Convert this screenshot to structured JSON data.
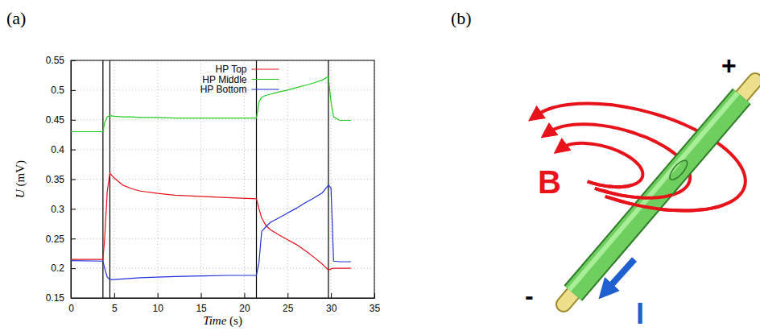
{
  "chart_data": {
    "type": "line",
    "xlabel": "Time (s)",
    "ylabel": "U (mV)",
    "x": [
      0,
      3.7,
      3.9,
      4.2,
      4.5,
      5,
      6,
      7,
      8,
      10,
      12,
      15,
      18,
      21.4,
      21.7,
      22,
      22.5,
      23,
      24,
      25,
      26,
      27,
      28,
      29,
      29.7,
      30,
      30.3,
      31,
      32.3
    ],
    "series": [
      {
        "name": "HP Top",
        "color": "#e8121a",
        "values": [
          0.215,
          0.215,
          0.25,
          0.33,
          0.36,
          0.352,
          0.34,
          0.334,
          0.33,
          0.326,
          0.323,
          0.321,
          0.319,
          0.317,
          0.3,
          0.285,
          0.272,
          0.265,
          0.256,
          0.248,
          0.24,
          0.23,
          0.219,
          0.207,
          0.197,
          0.199,
          0.2,
          0.2,
          0.2
        ]
      },
      {
        "name": "HP Middle",
        "color": "#22cc22",
        "values": [
          0.43,
          0.43,
          0.445,
          0.455,
          0.457,
          0.456,
          0.455,
          0.455,
          0.454,
          0.454,
          0.453,
          0.453,
          0.453,
          0.453,
          0.48,
          0.488,
          0.491,
          0.493,
          0.497,
          0.5,
          0.504,
          0.508,
          0.512,
          0.517,
          0.523,
          0.48,
          0.455,
          0.449,
          0.449
        ]
      },
      {
        "name": "HP Bottom",
        "color": "#2233dd",
        "values": [
          0.213,
          0.212,
          0.2,
          0.185,
          0.181,
          0.181,
          0.182,
          0.183,
          0.184,
          0.185,
          0.186,
          0.187,
          0.188,
          0.188,
          0.21,
          0.262,
          0.27,
          0.277,
          0.285,
          0.293,
          0.301,
          0.31,
          0.318,
          0.327,
          0.34,
          0.335,
          0.212,
          0.211,
          0.211
        ]
      }
    ],
    "vlines": [
      3.7,
      4.5,
      21.4,
      29.7
    ],
    "xlim": [
      0,
      35
    ],
    "xticks": [
      0,
      5,
      10,
      15,
      20,
      25,
      30,
      35
    ],
    "ylim": [
      0.15,
      0.55
    ],
    "yticks": [
      0.15,
      0.2,
      0.25,
      0.3,
      0.35,
      0.4,
      0.45,
      0.5,
      0.55
    ],
    "grid": true,
    "legend": "top"
  },
  "panels": {
    "a": "(a)",
    "b": "(b)"
  },
  "diagram": {
    "field": "B",
    "current": "I",
    "plus": "+",
    "minus": "-"
  }
}
